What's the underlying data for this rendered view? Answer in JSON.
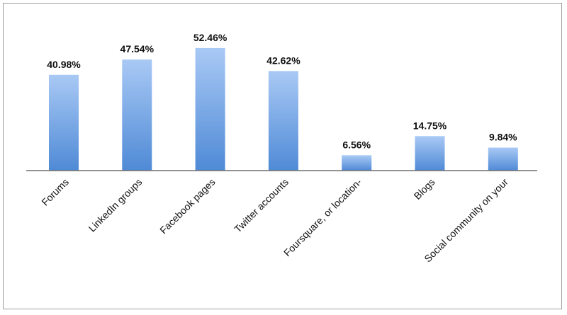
{
  "chart_data": {
    "type": "bar",
    "categories": [
      "Forums",
      "LinkedIn groups",
      "Facebook pages",
      "Twitter accounts",
      "Foursquare, or location-",
      "Blogs",
      "Social community on your"
    ],
    "values": [
      40.98,
      47.54,
      52.46,
      42.62,
      6.56,
      14.75,
      9.84
    ],
    "value_labels": [
      "40.98%",
      "47.54%",
      "52.46%",
      "42.62%",
      "6.56%",
      "14.75%",
      "9.84%"
    ],
    "title": "",
    "xlabel": "",
    "ylabel": "",
    "ylim": [
      0,
      60
    ],
    "grid": false,
    "legend": "none",
    "colors": {
      "bar_top": "#a9c9f5",
      "bar_bottom": "#4f8ad6",
      "axis": "#6f6f6f",
      "frame": "#9c9c9c"
    }
  }
}
